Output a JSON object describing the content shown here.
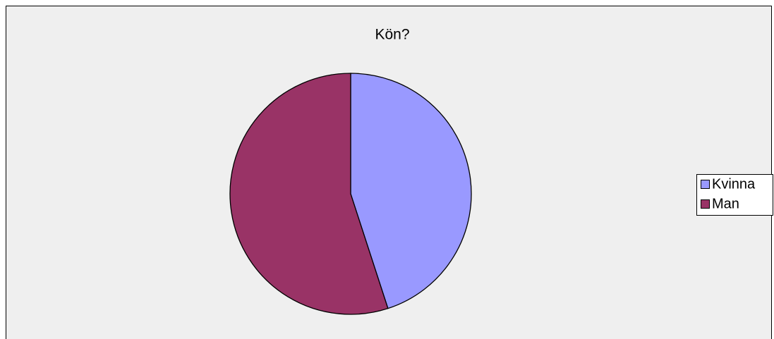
{
  "chart_data": {
    "type": "pie",
    "title": "Kön?",
    "categories": [
      "Kvinna",
      "Man"
    ],
    "values": [
      45,
      55
    ],
    "colors": [
      "#9999ff",
      "#993366"
    ],
    "legend": "right"
  }
}
